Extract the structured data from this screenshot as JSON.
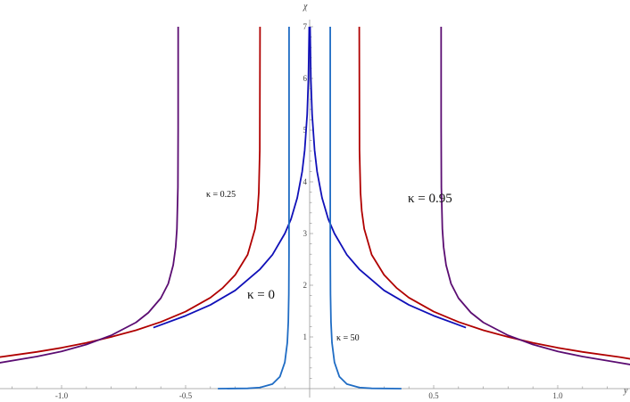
{
  "chart_data": {
    "type": "line",
    "xlabel": "y",
    "ylabel": "χ",
    "xlim": [
      -1.25,
      1.29
    ],
    "ylim": [
      0,
      7
    ],
    "grid": false,
    "x_ticks": [
      -1.0,
      -0.5,
      0.5,
      1.0
    ],
    "x_tick_labels": [
      "-1.0",
      "-0.5",
      "0.5",
      "1.0"
    ],
    "y_ticks": [
      1,
      2,
      3,
      4,
      5,
      6,
      7
    ],
    "y_tick_labels": [
      "1",
      "2",
      "3",
      "4",
      "5",
      "6",
      "7"
    ],
    "series": [
      {
        "name": "κ = 0",
        "color": "#1010b8",
        "branches": [
          [
            [
              -0.63,
              1.18
            ],
            [
              -0.5,
              1.41
            ],
            [
              -0.4,
              1.62
            ],
            [
              -0.3,
              1.9
            ],
            [
              -0.2,
              2.31
            ],
            [
              -0.15,
              2.59
            ],
            [
              -0.1,
              3.0
            ],
            [
              -0.075,
              3.28
            ],
            [
              -0.05,
              3.69
            ],
            [
              -0.03,
              4.2
            ],
            [
              -0.02,
              4.61
            ],
            [
              -0.01,
              5.3
            ],
            [
              -0.005,
              5.99
            ],
            [
              -0.002,
              6.91
            ],
            [
              -0.0018,
              7.0
            ]
          ],
          [
            [
              0.0018,
              7.0
            ],
            [
              0.002,
              6.91
            ],
            [
              0.005,
              5.99
            ],
            [
              0.01,
              5.3
            ],
            [
              0.02,
              4.61
            ],
            [
              0.03,
              4.2
            ],
            [
              0.05,
              3.69
            ],
            [
              0.075,
              3.28
            ],
            [
              0.1,
              3.0
            ],
            [
              0.15,
              2.59
            ],
            [
              0.2,
              2.31
            ],
            [
              0.3,
              1.9
            ],
            [
              0.4,
              1.62
            ],
            [
              0.5,
              1.41
            ],
            [
              0.63,
              1.18
            ]
          ]
        ]
      },
      {
        "name": "κ = 0.25",
        "color": "#b00000",
        "branches": [
          [
            [
              -1.25,
              0.61
            ],
            [
              -1.1,
              0.71
            ],
            [
              -1.0,
              0.79
            ],
            [
              -0.9,
              0.886
            ],
            [
              -0.8,
              1.0
            ],
            [
              -0.7,
              1.13
            ],
            [
              -0.6,
              1.29
            ],
            [
              -0.5,
              1.49
            ],
            [
              -0.4,
              1.76
            ],
            [
              -0.35,
              1.95
            ],
            [
              -0.3,
              2.2
            ],
            [
              -0.25,
              2.59
            ],
            [
              -0.22,
              3.09
            ],
            [
              -0.21,
              3.44
            ],
            [
              -0.205,
              3.79
            ],
            [
              -0.201,
              4.61
            ],
            [
              -0.2,
              7.0
            ]
          ],
          [
            [
              0.2,
              7.0
            ],
            [
              0.201,
              4.61
            ],
            [
              0.205,
              3.79
            ],
            [
              0.21,
              3.44
            ],
            [
              0.22,
              3.09
            ],
            [
              0.25,
              2.59
            ],
            [
              0.3,
              2.2
            ],
            [
              0.35,
              1.95
            ],
            [
              0.4,
              1.76
            ],
            [
              0.5,
              1.49
            ],
            [
              0.6,
              1.29
            ],
            [
              0.7,
              1.13
            ],
            [
              0.8,
              1.0
            ],
            [
              0.9,
              0.886
            ],
            [
              1.0,
              0.79
            ],
            [
              1.1,
              0.71
            ],
            [
              1.25,
              0.61
            ],
            [
              1.3,
              0.57
            ]
          ]
        ]
      },
      {
        "name": "κ = 0.95",
        "color": "#5b0d72",
        "branches": [
          [
            [
              -1.25,
              0.5
            ],
            [
              -1.1,
              0.62
            ],
            [
              -1.0,
              0.72
            ],
            [
              -0.9,
              0.854
            ],
            [
              -0.8,
              1.03
            ],
            [
              -0.7,
              1.28
            ],
            [
              -0.65,
              1.47
            ],
            [
              -0.6,
              1.75
            ],
            [
              -0.57,
              2.03
            ],
            [
              -0.55,
              2.39
            ],
            [
              -0.54,
              2.74
            ],
            [
              -0.535,
              3.09
            ],
            [
              -0.531,
              3.89
            ],
            [
              -0.5301,
              5.04
            ],
            [
              -0.53,
              7.0
            ]
          ],
          [
            [
              0.53,
              7.0
            ],
            [
              0.5301,
              5.04
            ],
            [
              0.531,
              3.89
            ],
            [
              0.535,
              3.09
            ],
            [
              0.54,
              2.74
            ],
            [
              0.55,
              2.39
            ],
            [
              0.57,
              2.03
            ],
            [
              0.6,
              1.75
            ],
            [
              0.65,
              1.47
            ],
            [
              0.7,
              1.28
            ],
            [
              0.8,
              1.03
            ],
            [
              0.9,
              0.854
            ],
            [
              1.0,
              0.72
            ],
            [
              1.1,
              0.62
            ],
            [
              1.25,
              0.5
            ],
            [
              1.3,
              0.46
            ]
          ]
        ]
      },
      {
        "name": "κ = 50",
        "color": "#1f6cc4",
        "branches": [
          [
            [
              -0.37,
              0.0
            ],
            [
              -0.25,
              0.005
            ],
            [
              -0.2,
              0.021
            ],
            [
              -0.15,
              0.088
            ],
            [
              -0.12,
              0.23
            ],
            [
              -0.1,
              0.51
            ],
            [
              -0.09,
              0.89
            ],
            [
              -0.086,
              1.29
            ],
            [
              -0.084,
              1.83
            ],
            [
              -0.0832,
              2.63
            ],
            [
              -0.08301,
              4.13
            ],
            [
              -0.083,
              7.0
            ]
          ],
          [
            [
              0.083,
              7.0
            ],
            [
              0.08301,
              4.13
            ],
            [
              0.0832,
              2.63
            ],
            [
              0.084,
              1.83
            ],
            [
              0.086,
              1.29
            ],
            [
              0.09,
              0.89
            ],
            [
              0.1,
              0.51
            ],
            [
              0.12,
              0.23
            ],
            [
              0.15,
              0.088
            ],
            [
              0.2,
              0.021
            ],
            [
              0.25,
              0.005
            ],
            [
              0.37,
              0.0
            ]
          ]
        ]
      }
    ],
    "annotations": {
      "k025": "κ = 0.25",
      "k095": "κ = 0.95",
      "k0": "κ = 0",
      "k50": "κ = 50"
    }
  }
}
